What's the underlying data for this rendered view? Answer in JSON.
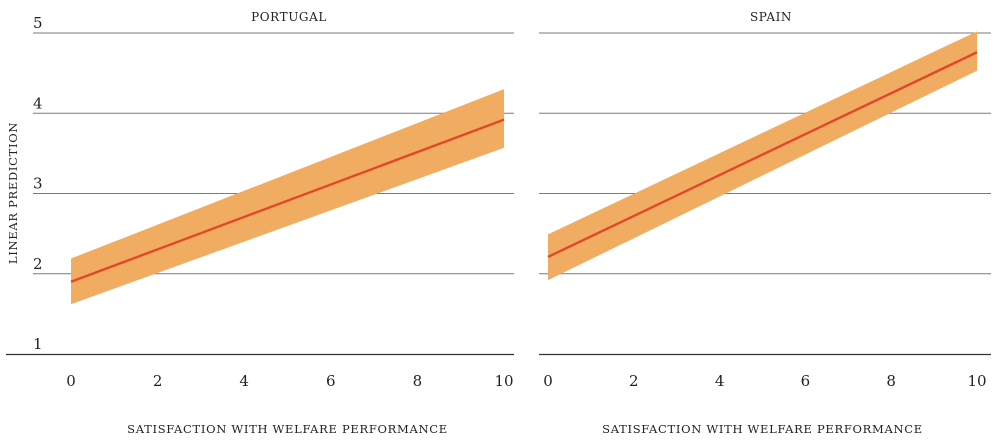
{
  "colors": {
    "band": "#f0ad62",
    "line": "#e2472b",
    "grid": "#7a7a7a",
    "axis": "#333333"
  },
  "y_axis_label": "LINEAR PREDICTION",
  "chart_data": [
    {
      "type": "line",
      "title": "PORTUGAL",
      "xlabel": "SATISFACTION WITH WELFARE PERFORMANCE",
      "ylabel": "LINEAR PREDICTION",
      "x_ticks": [
        0,
        2,
        4,
        6,
        8,
        10
      ],
      "y_ticks": [
        1,
        2,
        3,
        4,
        5
      ],
      "xlim": [
        0,
        10
      ],
      "ylim": [
        1,
        5
      ],
      "grid": true,
      "series": [
        {
          "x": [
            0,
            10
          ],
          "y": [
            1.9,
            3.92
          ],
          "ci_lower": [
            1.62,
            3.57
          ],
          "ci_upper": [
            2.19,
            4.3
          ]
        }
      ]
    },
    {
      "type": "line",
      "title": "SPAIN",
      "xlabel": "SATISFACTION WITH WELFARE PERFORMANCE",
      "ylabel": "",
      "x_ticks": [
        0,
        2,
        4,
        6,
        8,
        10
      ],
      "y_ticks": [
        1,
        2,
        3,
        4,
        5
      ],
      "xlim": [
        0,
        10
      ],
      "ylim": [
        1,
        5
      ],
      "grid": true,
      "series": [
        {
          "x": [
            0,
            10
          ],
          "y": [
            2.21,
            4.76
          ],
          "ci_lower": [
            1.92,
            4.53
          ],
          "ci_upper": [
            2.49,
            5.02
          ]
        }
      ]
    }
  ]
}
